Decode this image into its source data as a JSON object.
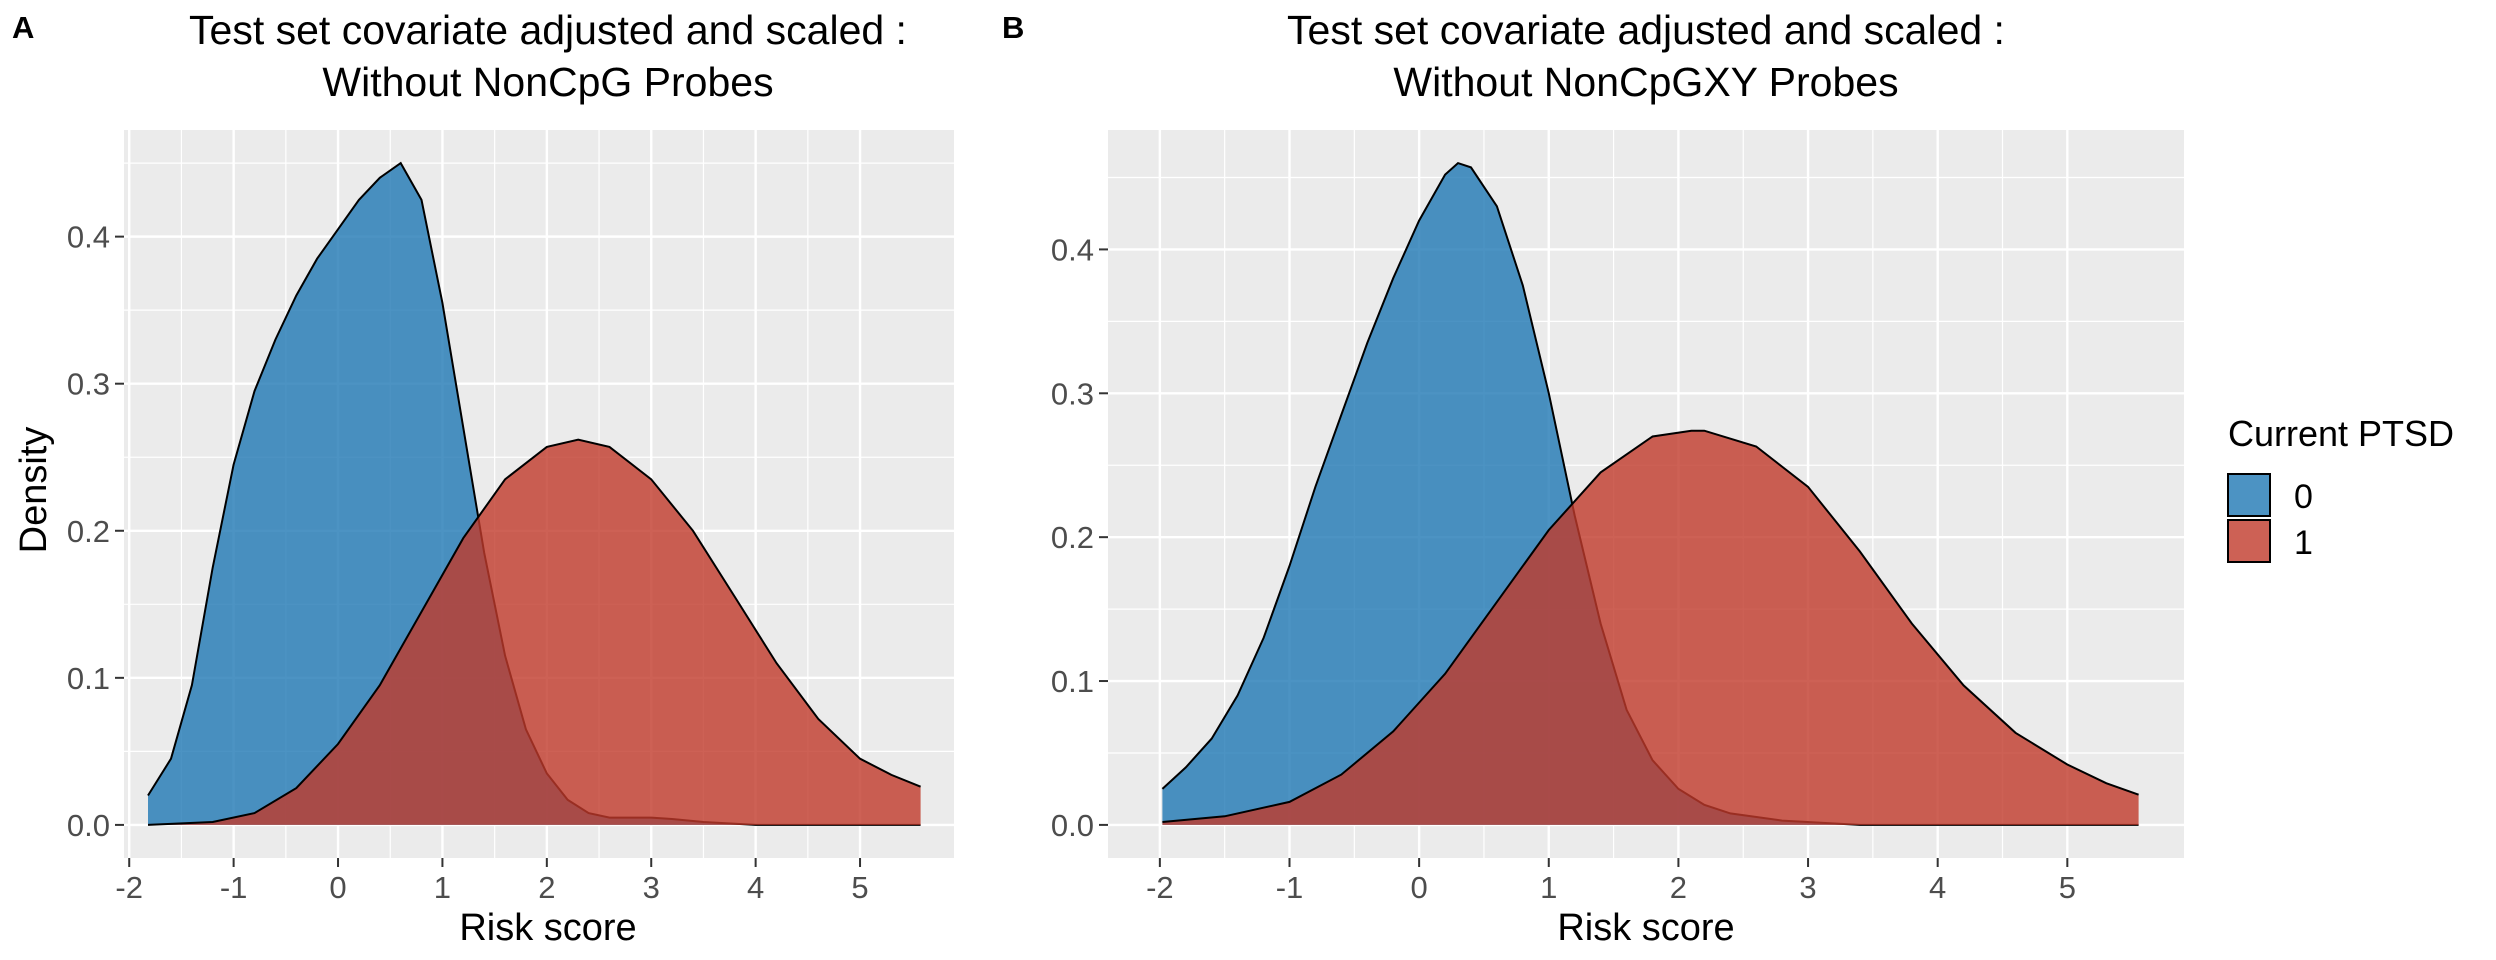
{
  "chart_data": [
    {
      "panel_label": "A",
      "type": "area",
      "subtype": "density",
      "title": "Test set covariate adjusted and scaled :",
      "subtitle": "Without NonCpG Probes",
      "xlabel": "Risk score",
      "ylabel": "Density",
      "xlim": [
        -2.05,
        5.9
      ],
      "ylim": [
        -0.0225,
        0.4725
      ],
      "xticks": [
        -2,
        -1,
        0,
        1,
        2,
        3,
        4,
        5
      ],
      "yticks": [
        0.0,
        0.1,
        0.2,
        0.3,
        0.4
      ],
      "xtick_labels": [
        "-2",
        "-1",
        "0",
        "1",
        "2",
        "3",
        "4",
        "5"
      ],
      "ytick_labels": [
        "0.0",
        "0.1",
        "0.2",
        "0.3",
        "0.4"
      ],
      "grid": true,
      "series": [
        {
          "name": "0",
          "color": "#1f78b4",
          "x": [
            -1.82,
            -1.6,
            -1.4,
            -1.2,
            -1.0,
            -0.8,
            -0.6,
            -0.4,
            -0.2,
            0.0,
            0.2,
            0.4,
            0.6,
            0.8,
            1.0,
            1.2,
            1.4,
            1.6,
            1.8,
            2.0,
            2.2,
            2.4,
            2.6,
            2.8,
            3.0,
            3.2,
            3.5,
            4.0,
            5.58
          ],
          "y": [
            0.02,
            0.045,
            0.095,
            0.175,
            0.245,
            0.295,
            0.33,
            0.36,
            0.385,
            0.405,
            0.425,
            0.44,
            0.45,
            0.425,
            0.355,
            0.27,
            0.185,
            0.115,
            0.065,
            0.035,
            0.017,
            0.008,
            0.005,
            0.005,
            0.005,
            0.004,
            0.002,
            0.0,
            0.0
          ]
        },
        {
          "name": "1",
          "color": "#c0392b",
          "x": [
            -1.82,
            -1.2,
            -0.8,
            -0.4,
            0.0,
            0.4,
            0.8,
            1.2,
            1.6,
            2.0,
            2.3,
            2.6,
            3.0,
            3.4,
            3.8,
            4.2,
            4.6,
            5.0,
            5.3,
            5.58
          ],
          "y": [
            0.0,
            0.002,
            0.008,
            0.025,
            0.055,
            0.095,
            0.145,
            0.195,
            0.235,
            0.257,
            0.262,
            0.257,
            0.235,
            0.2,
            0.155,
            0.11,
            0.072,
            0.045,
            0.034,
            0.026
          ]
        }
      ]
    },
    {
      "panel_label": "B",
      "type": "area",
      "subtype": "density",
      "title": "Test set covariate adjusted and scaled :",
      "subtitle": "Without NonCpGXY Probes",
      "xlabel": "Risk score",
      "ylabel": "",
      "xlim": [
        -2.4,
        5.9
      ],
      "ylim": [
        -0.023,
        0.483
      ],
      "xticks": [
        -2,
        -1,
        0,
        1,
        2,
        3,
        4,
        5
      ],
      "yticks": [
        0.0,
        0.1,
        0.2,
        0.3,
        0.4
      ],
      "xtick_labels": [
        "-2",
        "-1",
        "0",
        "1",
        "2",
        "3",
        "4",
        "5"
      ],
      "ytick_labels": [
        "0.0",
        "0.1",
        "0.2",
        "0.3",
        "0.4"
      ],
      "grid": true,
      "series": [
        {
          "name": "0",
          "color": "#1f78b4",
          "x": [
            -1.98,
            -1.8,
            -1.6,
            -1.4,
            -1.2,
            -1.0,
            -0.8,
            -0.6,
            -0.4,
            -0.2,
            0.0,
            0.2,
            0.3,
            0.4,
            0.6,
            0.8,
            1.0,
            1.2,
            1.4,
            1.6,
            1.8,
            2.0,
            2.2,
            2.4,
            2.8,
            3.4,
            5.55
          ],
          "y": [
            0.025,
            0.04,
            0.06,
            0.09,
            0.13,
            0.18,
            0.235,
            0.285,
            0.335,
            0.38,
            0.42,
            0.452,
            0.46,
            0.457,
            0.43,
            0.375,
            0.3,
            0.215,
            0.14,
            0.08,
            0.045,
            0.025,
            0.014,
            0.008,
            0.003,
            0.0,
            0.0
          ]
        },
        {
          "name": "1",
          "color": "#c0392b",
          "x": [
            -1.98,
            -1.5,
            -1.0,
            -0.6,
            -0.2,
            0.2,
            0.6,
            1.0,
            1.4,
            1.8,
            2.1,
            2.2,
            2.6,
            3.0,
            3.4,
            3.8,
            4.2,
            4.6,
            5.0,
            5.3,
            5.55
          ],
          "y": [
            0.002,
            0.006,
            0.016,
            0.035,
            0.065,
            0.105,
            0.155,
            0.205,
            0.245,
            0.27,
            0.274,
            0.274,
            0.263,
            0.235,
            0.19,
            0.14,
            0.097,
            0.064,
            0.042,
            0.029,
            0.021
          ]
        }
      ]
    }
  ],
  "legend": {
    "title": "Current PTSD",
    "position": "right",
    "items": [
      {
        "label": "0",
        "color": "#1f78b4"
      },
      {
        "label": "1",
        "color": "#c0392b"
      }
    ]
  }
}
